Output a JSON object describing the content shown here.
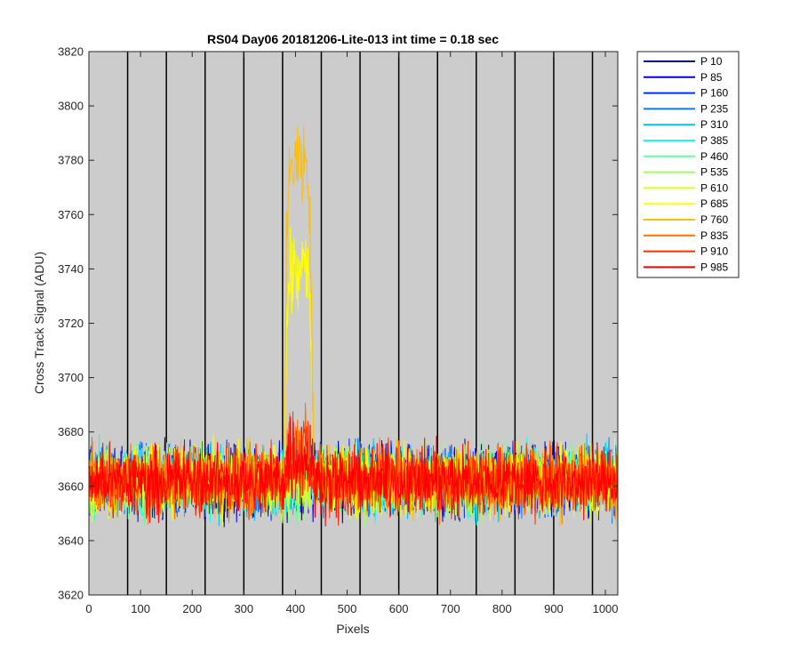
{
  "chart_data": {
    "type": "line",
    "title": "RS04 Day06 20181206-Lite-013 int time = 0.18 sec",
    "xlabel": "Pixels",
    "ylabel": "Cross Track Signal (ADU)",
    "xlim": [
      0,
      1024
    ],
    "ylim": [
      3620,
      3820
    ],
    "xticks": [
      0,
      100,
      200,
      300,
      400,
      500,
      600,
      700,
      800,
      900,
      1000
    ],
    "yticks": [
      3620,
      3640,
      3660,
      3680,
      3700,
      3720,
      3740,
      3760,
      3780,
      3800,
      3820
    ],
    "plot_background": "#cccccc",
    "grid": false,
    "legend_position": "outside-top-right",
    "vertical_lines_x": [
      75,
      150,
      225,
      300,
      375,
      450,
      525,
      600,
      675,
      750,
      825,
      900,
      975
    ],
    "baseline_mean": 3662,
    "baseline_noise_range": [
      3640,
      3685
    ],
    "peak_region_x": [
      378,
      435
    ],
    "series": [
      {
        "name": "P 10",
        "color": "#00008f",
        "peak": 0
      },
      {
        "name": "P 85",
        "color": "#0000df",
        "peak": 0
      },
      {
        "name": "P 160",
        "color": "#0030ff",
        "peak": 0
      },
      {
        "name": "P 235",
        "color": "#0080ff",
        "peak": 0
      },
      {
        "name": "P 310",
        "color": "#00bfff",
        "peak": 0
      },
      {
        "name": "P 385",
        "color": "#10ffef",
        "peak": 0
      },
      {
        "name": "P 460",
        "color": "#60ffa0",
        "peak": 0
      },
      {
        "name": "P 535",
        "color": "#9fff60",
        "peak": 0
      },
      {
        "name": "P 610",
        "color": "#dfff20",
        "peak": 0
      },
      {
        "name": "P 685",
        "color": "#ffff00",
        "peak": 3740
      },
      {
        "name": "P 760",
        "color": "#ffbf00",
        "peak": 3780
      },
      {
        "name": "P 835",
        "color": "#ff7000",
        "peak": 3675
      },
      {
        "name": "P 910",
        "color": "#ff3000",
        "peak": 3672
      },
      {
        "name": "P 985",
        "color": "#ff0000",
        "peak": 3670
      }
    ]
  }
}
